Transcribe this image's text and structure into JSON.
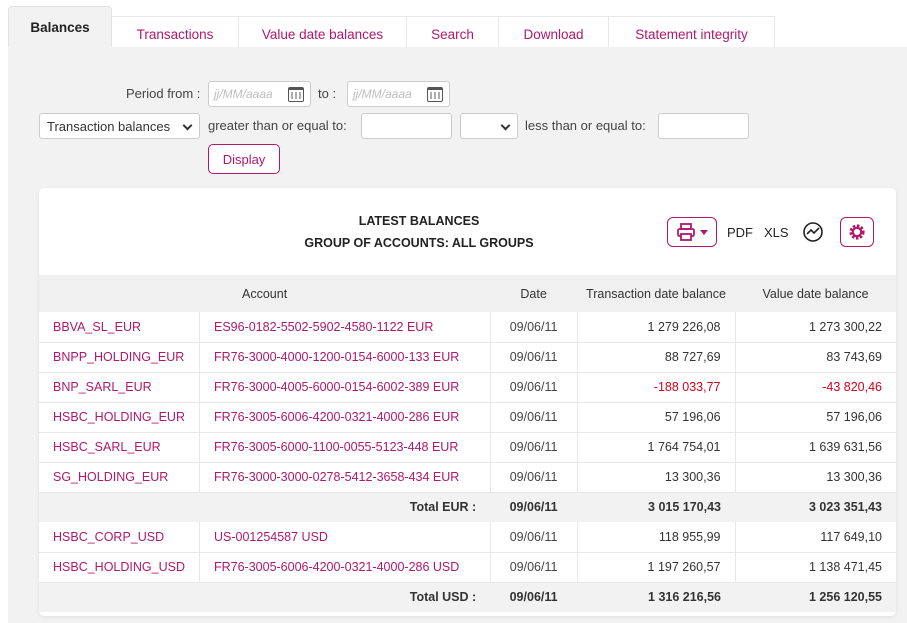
{
  "tabs": [
    "Balances",
    "Transactions",
    "Value date balances",
    "Search",
    "Download",
    "Statement integrity"
  ],
  "filters": {
    "period_from_label": "Period from :",
    "date_placeholder": "jj/MM/aaaa",
    "to_label": "to :",
    "balance_type": "Transaction balances",
    "gte_label": "greater than or equal to:",
    "lte_label": "less than or equal to:",
    "display_button": "Display"
  },
  "card": {
    "title_line1": "LATEST BALANCES",
    "title_line2": "GROUP OF ACCOUNTS: ALL GROUPS",
    "pdf": "PDF",
    "xls": "XLS"
  },
  "columns": [
    "Account",
    "Date",
    "Transaction date balance",
    "Value date balance"
  ],
  "rows": [
    {
      "name": "BBVA_SL_EUR",
      "account": "ES96-0182-5502-5902-4580-1122 EUR",
      "date": "09/06/11",
      "tx": "1 279 226,08",
      "val": "1 273 300,22"
    },
    {
      "name": "BNPP_HOLDING_EUR",
      "account": "FR76-3000-4000-1200-0154-6000-133 EUR",
      "date": "09/06/11",
      "tx": "88 727,69",
      "val": "83 743,69"
    },
    {
      "name": "BNP_SARL_EUR",
      "account": "FR76-3000-4005-6000-0154-6002-389 EUR",
      "date": "09/06/11",
      "tx": "-188 033,77",
      "val": "-43 820,46"
    },
    {
      "name": "HSBC_HOLDING_EUR",
      "account": "FR76-3005-6006-4200-0321-4000-286 EUR",
      "date": "09/06/11",
      "tx": "57 196,06",
      "val": "57 196,06"
    },
    {
      "name": "HSBC_SARL_EUR",
      "account": "FR76-3005-6000-1100-0055-5123-448 EUR",
      "date": "09/06/11",
      "tx": "1 764 754,01",
      "val": "1 639 631,56"
    },
    {
      "name": "SG_HOLDING_EUR",
      "account": "FR76-3000-3000-0278-5412-3658-434 EUR",
      "date": "09/06/11",
      "tx": "13 300,36",
      "val": "13 300,36"
    },
    {
      "name": "HSBC_CORP_USD",
      "account": "US-001254587 USD",
      "date": "09/06/11",
      "tx": "118 955,99",
      "val": "117 649,10"
    },
    {
      "name": "HSBC_HOLDING_USD",
      "account": "FR76-3005-6006-4200-0321-4000-286 USD",
      "date": "09/06/11",
      "tx": "1 197 260,57",
      "val": "1 138 471,45"
    }
  ],
  "totals": [
    {
      "label": "Total EUR :",
      "date": "09/06/11",
      "tx": "3 015 170,43",
      "val": "3 023 351,43"
    },
    {
      "label": "Total USD :",
      "date": "09/06/11",
      "tx": "1 316 216,56",
      "val": "1 256 120,55"
    }
  ],
  "colors": {
    "accent": "#b0186b",
    "negative": "#d0021b",
    "panel": "#f2f2f2"
  }
}
